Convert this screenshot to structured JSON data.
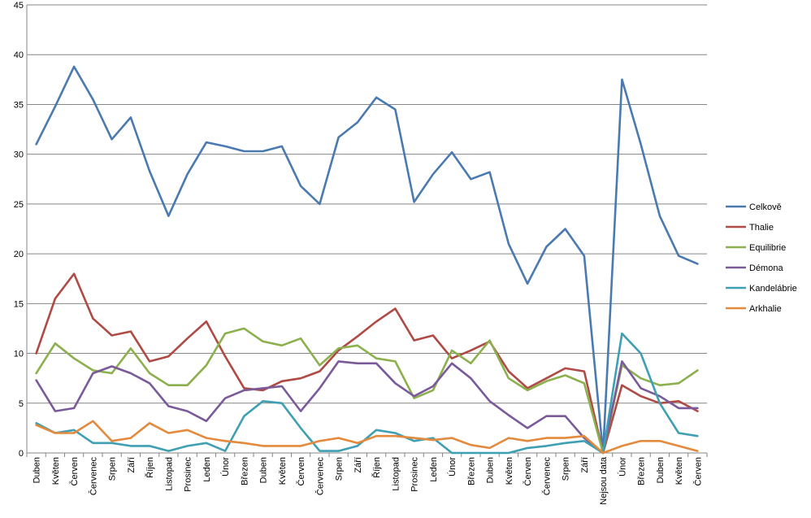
{
  "chart_data": {
    "type": "line",
    "title": "",
    "xlabel": "",
    "ylabel": "",
    "ylim": [
      0,
      45
    ],
    "y_ticks": [
      0,
      5,
      10,
      15,
      20,
      25,
      30,
      35,
      40,
      45
    ],
    "grid": true,
    "legend_position": "right",
    "categories": [
      "Duben",
      "Květen",
      "Červen",
      "Červenec",
      "Srpen",
      "Září",
      "Říjen",
      "Listopad",
      "Prosinec",
      "Leden",
      "Únor",
      "Březen",
      "Duben",
      "Květen",
      "Červen",
      "Červenec",
      "Srpen",
      "Září",
      "Říjen",
      "Listopad",
      "Prosinec",
      "Leden",
      "Únor",
      "Březen",
      "Duben",
      "Květen",
      "Červen",
      "Červenec",
      "Srpen",
      "Září",
      "Nejsou data",
      "Únor",
      "Březen",
      "Duben",
      "Květen",
      "Červen"
    ],
    "series": [
      {
        "name": "Celkově",
        "color": "#4a7ab0",
        "values": [
          31.0,
          34.8,
          38.8,
          35.5,
          31.5,
          33.7,
          28.3,
          23.8,
          28.0,
          31.2,
          30.8,
          30.3,
          30.3,
          30.8,
          26.8,
          25.0,
          31.7,
          33.2,
          35.7,
          34.5,
          25.2,
          28.0,
          30.2,
          27.5,
          28.2,
          21.0,
          17.0,
          20.7,
          22.5,
          19.8,
          0.0,
          37.5,
          31.0,
          23.8,
          19.8,
          19.0
        ]
      },
      {
        "name": "Thalie",
        "color": "#b04a45",
        "values": [
          10.0,
          15.5,
          18.0,
          13.5,
          11.8,
          12.2,
          9.2,
          9.7,
          11.5,
          13.2,
          9.7,
          6.5,
          6.3,
          7.2,
          7.5,
          8.2,
          10.3,
          11.7,
          13.2,
          14.5,
          11.3,
          11.8,
          9.5,
          10.3,
          11.2,
          8.2,
          6.5,
          7.5,
          8.5,
          8.2,
          0.0,
          6.8,
          5.7,
          5.0,
          5.2,
          4.2
        ]
      },
      {
        "name": "Equilibrie",
        "color": "#8cb04e",
        "values": [
          8.0,
          11.0,
          9.5,
          8.3,
          8.0,
          10.5,
          8.0,
          6.8,
          6.8,
          8.8,
          12.0,
          12.5,
          11.2,
          10.8,
          11.5,
          8.8,
          10.5,
          10.8,
          9.5,
          9.2,
          5.5,
          6.3,
          10.3,
          9.0,
          11.3,
          7.5,
          6.3,
          7.2,
          7.8,
          7.0,
          0.0,
          8.8,
          7.5,
          6.8,
          7.0,
          8.3
        ]
      },
      {
        "name": "Démona",
        "color": "#7b5a9a",
        "values": [
          7.3,
          4.2,
          4.5,
          8.0,
          8.7,
          8.0,
          7.0,
          4.7,
          4.2,
          3.2,
          5.5,
          6.3,
          6.5,
          6.7,
          4.2,
          6.5,
          9.2,
          9.0,
          9.0,
          7.0,
          5.7,
          6.7,
          9.0,
          7.5,
          5.2,
          3.8,
          2.5,
          3.7,
          3.7,
          1.5,
          0.0,
          9.2,
          6.5,
          5.7,
          4.5,
          4.5
        ]
      },
      {
        "name": "Kandelábrie",
        "color": "#3f9fb3",
        "values": [
          3.0,
          2.0,
          2.3,
          1.0,
          1.0,
          0.7,
          0.7,
          0.2,
          0.7,
          1.0,
          0.2,
          3.7,
          5.2,
          5.0,
          2.5,
          0.2,
          0.2,
          0.7,
          2.3,
          2.0,
          1.2,
          1.5,
          0.0,
          0.0,
          0.0,
          0.0,
          0.5,
          0.7,
          1.0,
          1.2,
          0.0,
          12.0,
          10.0,
          5.0,
          2.0,
          1.7
        ]
      },
      {
        "name": "Arkhalie",
        "color": "#e38a3c",
        "values": [
          2.8,
          2.0,
          2.0,
          3.2,
          1.2,
          1.5,
          3.0,
          2.0,
          2.3,
          1.5,
          1.2,
          1.0,
          0.7,
          0.7,
          0.7,
          1.2,
          1.5,
          1.0,
          1.7,
          1.7,
          1.5,
          1.3,
          1.5,
          0.8,
          0.5,
          1.5,
          1.2,
          1.5,
          1.5,
          1.7,
          0.0,
          0.7,
          1.2,
          1.2,
          0.7,
          0.2
        ]
      }
    ]
  }
}
